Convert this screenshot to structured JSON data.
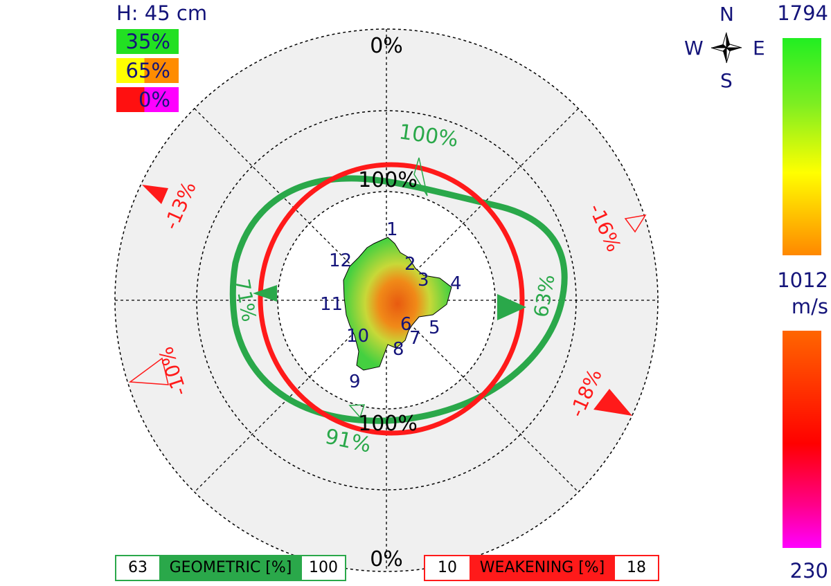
{
  "header": {
    "height_label": "H: 45 cm"
  },
  "coverage_legend": [
    {
      "label": "35%",
      "colors": [
        "#22e022"
      ]
    },
    {
      "label": "65%",
      "colors": [
        "#ffff00",
        "#ff8c00"
      ]
    },
    {
      "label": "0%",
      "colors": [
        "#ff1010",
        "#ff00ff"
      ]
    }
  ],
  "compass": {
    "north": "N",
    "south": "S",
    "east": "E",
    "west": "W"
  },
  "colorbar": {
    "unit": "m/s",
    "upper": {
      "max": "1794",
      "min": "1012",
      "colors": [
        "#22ee22",
        "#ffff00",
        "#ff8800"
      ]
    },
    "lower": {
      "max": "1012",
      "min": "230",
      "colors": [
        "#ff6600",
        "#ff0000",
        "#ff00ff"
      ]
    }
  },
  "rings": {
    "outer_top": "0%",
    "outer_bottom": "0%",
    "inner_top": "100%",
    "inner_bottom": "100%"
  },
  "sensors": [
    "1",
    "2",
    "3",
    "4",
    "5",
    "6",
    "7",
    "8",
    "9",
    "10",
    "11",
    "12"
  ],
  "geometric_markers": [
    {
      "label": "100%",
      "direction": "N"
    },
    {
      "label": "63%",
      "direction": "E"
    },
    {
      "label": "91%",
      "direction": "S"
    },
    {
      "label": "71%",
      "direction": "W"
    }
  ],
  "weakening_markers": [
    {
      "label": "-16%",
      "direction": "NE",
      "filled": false
    },
    {
      "label": "-18%",
      "direction": "SE",
      "filled": true
    },
    {
      "label": "-10%",
      "direction": "SW",
      "filled": false
    },
    {
      "label": "-13%",
      "direction": "NW",
      "filled": true
    }
  ],
  "geometric_bar": {
    "min": "63",
    "label": "GEOMETRIC [%]",
    "max": "100",
    "color": "#2aa84a"
  },
  "weakening_bar": {
    "min": "10",
    "label": "WEAKENING [%]",
    "max": "18",
    "color": "#ff1a1a"
  }
}
